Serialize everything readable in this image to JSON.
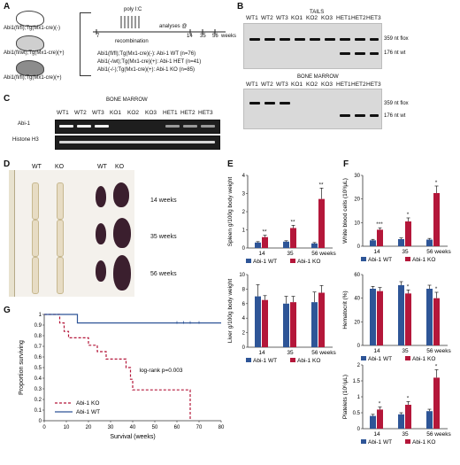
{
  "panels": {
    "A": "A",
    "B": "B",
    "C": "C",
    "D": "D",
    "E": "E",
    "F": "F",
    "G": "G"
  },
  "panelA": {
    "mice": [
      "Abi1(fl/fl);Tg(Mx1-cre)(-)",
      "Abi1(fl/wt);Tg(Mx1-cre)(+)",
      "Abi1(fl/fl);Tg(Mx1-cre)(+)"
    ],
    "treatment": "poly I:C",
    "recombination": "recombination",
    "analyses": "analyses @",
    "timeline_ticks": [
      "7",
      "14",
      "35",
      "56",
      "weeks"
    ],
    "groups": [
      "Abi1(fl/fl);Tg(Mx1-cre)(-): Abi-1 WT (n=76)",
      "Abi1(-/wt);Tg(Mx1-cre)(+): Abi-1 HET (n=41)",
      "Abi1(-/-);Tg(Mx1-cre)(+): Abi-1 KO (n=85)"
    ]
  },
  "panelB": {
    "tails_title": "TAILS",
    "bm_title": "BONE MARROW",
    "lanes": [
      "WT1",
      "WT2",
      "WT3",
      "KO1",
      "KO2",
      "KO3",
      "HET1",
      "HET2",
      "HET3"
    ],
    "band_flox": "359 nt flox",
    "band_wt": "176 nt wt"
  },
  "panelC": {
    "title": "BONE MARROW",
    "lanes": [
      "WT1",
      "WT2",
      "WT3",
      "KO1",
      "KO2",
      "KO3",
      "HET1",
      "HET2",
      "HET3"
    ],
    "rows": [
      "Abi-1",
      "Histone H3"
    ]
  },
  "panelD": {
    "col_labels": [
      "WT",
      "KO",
      "WT",
      "KO"
    ],
    "row_labels": [
      "14 weeks",
      "35 weeks",
      "56 weeks"
    ]
  },
  "legend": {
    "wt": "Abi-1 WT",
    "ko": "Abi-1 KO"
  },
  "colors": {
    "wt": "#2e5597",
    "ko": "#b4173a"
  },
  "chart_data": [
    {
      "type": "bar",
      "id": "spleen",
      "ylabel": "Spleen g/100g body weight",
      "categories": [
        "14",
        "35",
        "56 weeks"
      ],
      "ylim": [
        0,
        4
      ],
      "yticks": [
        0,
        1,
        2,
        3,
        4
      ],
      "series": [
        {
          "name": "Abi-1 WT",
          "values": [
            0.3,
            0.35,
            0.25
          ],
          "err": [
            0.05,
            0.05,
            0.05
          ]
        },
        {
          "name": "Abi-1 KO",
          "values": [
            0.6,
            1.1,
            2.7
          ],
          "err": [
            0.1,
            0.15,
            0.6
          ]
        }
      ],
      "annotations": [
        "**",
        "**",
        "**"
      ]
    },
    {
      "type": "bar",
      "id": "liver",
      "ylabel": "Liver g/100g body weight",
      "categories": [
        "14",
        "35",
        "56 weeks"
      ],
      "ylim": [
        0,
        10
      ],
      "yticks": [
        0,
        2,
        4,
        6,
        8,
        10
      ],
      "series": [
        {
          "name": "Abi-1 WT",
          "values": [
            7.0,
            6.0,
            6.2
          ],
          "err": [
            1.6,
            1.0,
            1.4
          ]
        },
        {
          "name": "Abi-1 KO",
          "values": [
            6.5,
            6.2,
            7.5
          ],
          "err": [
            0.6,
            0.8,
            1.0
          ]
        }
      ],
      "annotations": [
        "",
        "",
        ""
      ]
    },
    {
      "type": "bar",
      "id": "wbc",
      "ylabel": "White blood cells (10³/μL)",
      "categories": [
        "14",
        "35",
        "56 weeks"
      ],
      "ylim": [
        0,
        30
      ],
      "yticks": [
        0,
        10,
        20,
        30
      ],
      "series": [
        {
          "name": "Abi-1 WT",
          "values": [
            2.5,
            3.0,
            2.8
          ],
          "err": [
            0.4,
            0.5,
            0.5
          ]
        },
        {
          "name": "Abi-1 KO",
          "values": [
            7.0,
            10.5,
            22.5
          ],
          "err": [
            0.8,
            1.5,
            3.0
          ]
        }
      ],
      "annotations": [
        "***",
        "*",
        "*"
      ]
    },
    {
      "type": "bar",
      "id": "hct",
      "ylabel": "Hematocrit (%)",
      "categories": [
        "14",
        "35",
        "56 weeks"
      ],
      "ylim": [
        0,
        60
      ],
      "yticks": [
        0,
        20,
        40,
        60
      ],
      "series": [
        {
          "name": "Abi-1 WT",
          "values": [
            48,
            51,
            48
          ],
          "err": [
            2,
            3,
            3
          ]
        },
        {
          "name": "Abi-1 KO",
          "values": [
            46,
            44,
            40
          ],
          "err": [
            3,
            3,
            5
          ]
        }
      ],
      "annotations": [
        "",
        "*",
        "*"
      ]
    },
    {
      "type": "bar",
      "id": "plt",
      "ylabel": "Platelets (10⁶/μL)",
      "categories": [
        "14",
        "35",
        "56 weeks"
      ],
      "ylim": [
        0,
        2
      ],
      "yticks": [
        0,
        0.5,
        1,
        1.5,
        2
      ],
      "series": [
        {
          "name": "Abi-1 WT",
          "values": [
            0.4,
            0.45,
            0.55
          ],
          "err": [
            0.05,
            0.05,
            0.06
          ]
        },
        {
          "name": "Abi-1 KO",
          "values": [
            0.6,
            0.75,
            1.6
          ],
          "err": [
            0.08,
            0.1,
            0.25
          ]
        }
      ],
      "annotations": [
        "*",
        "*",
        "*"
      ]
    },
    {
      "type": "line",
      "id": "survival",
      "xlabel": "Survival (weeks)",
      "ylabel": "Proportion surviving",
      "xlim": [
        0,
        80
      ],
      "ylim": [
        0,
        1
      ],
      "xticks": [
        0,
        10,
        20,
        30,
        40,
        50,
        60,
        70,
        80
      ],
      "yticks": [
        0,
        0.1,
        0.2,
        0.3,
        0.4,
        0.5,
        0.6,
        0.7,
        0.8,
        0.9,
        1
      ],
      "annotation": "log-rank p=0.003",
      "series": [
        {
          "name": "Abi-1 KO",
          "steps": [
            [
              0,
              1
            ],
            [
              7,
              1
            ],
            [
              7,
              0.92
            ],
            [
              9,
              0.92
            ],
            [
              9,
              0.84
            ],
            [
              11,
              0.84
            ],
            [
              11,
              0.78
            ],
            [
              20,
              0.78
            ],
            [
              20,
              0.71
            ],
            [
              24,
              0.71
            ],
            [
              24,
              0.65
            ],
            [
              28,
              0.65
            ],
            [
              28,
              0.58
            ],
            [
              37,
              0.58
            ],
            [
              37,
              0.5
            ],
            [
              39,
              0.5
            ],
            [
              39,
              0.39
            ],
            [
              40,
              0.39
            ],
            [
              40,
              0.29
            ],
            [
              66,
              0.29
            ],
            [
              66,
              0
            ]
          ]
        },
        {
          "name": "Abi-1 WT",
          "steps": [
            [
              0,
              1
            ],
            [
              15,
              1
            ],
            [
              15,
              0.92
            ],
            [
              80,
              0.92
            ]
          ]
        }
      ]
    }
  ]
}
